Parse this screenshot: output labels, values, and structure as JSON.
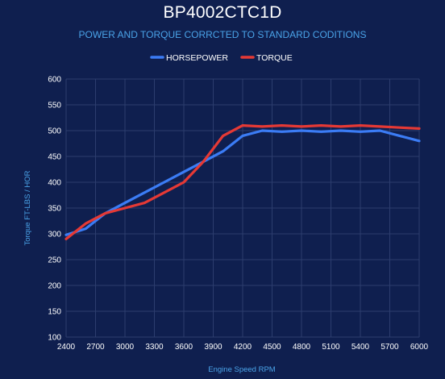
{
  "chart_data": {
    "type": "line",
    "title": "BP4002CTC1D",
    "subtitle": "POWER AND TORQUE CORRCTED TO STANDARD CODITIONS",
    "xlabel": "Engine Speed RPM",
    "ylabel": "Torque FT-LBS / HOR",
    "xlim": [
      2400,
      6000
    ],
    "ylim": [
      100,
      600
    ],
    "x_ticks": [
      2400,
      2700,
      3000,
      3300,
      3600,
      3900,
      4200,
      4500,
      4800,
      5100,
      5400,
      5700,
      6000
    ],
    "y_ticks": [
      100,
      150,
      200,
      250,
      300,
      350,
      400,
      450,
      500,
      550,
      600
    ],
    "grid": true,
    "legend_position": "top-center",
    "series": [
      {
        "name": "HORSEPOWER",
        "color": "#3b7cf5",
        "x": [
          2400,
          2600,
          2800,
          3000,
          3200,
          3400,
          3600,
          3800,
          4000,
          4200,
          4400,
          4600,
          4800,
          5000,
          5200,
          5400,
          5600,
          5800,
          6000
        ],
        "values": [
          298,
          310,
          340,
          360,
          380,
          400,
          420,
          440,
          460,
          490,
          500,
          498,
          500,
          498,
          500,
          498,
          500,
          490,
          480
        ]
      },
      {
        "name": "TORQUE",
        "color": "#e53935",
        "x": [
          2400,
          2600,
          2800,
          3000,
          3200,
          3400,
          3600,
          3800,
          4000,
          4200,
          4400,
          4600,
          4800,
          5000,
          5200,
          5400,
          5600,
          5800,
          6000
        ],
        "values": [
          290,
          320,
          340,
          350,
          360,
          380,
          400,
          440,
          490,
          510,
          508,
          510,
          508,
          510,
          508,
          510,
          508,
          506,
          504
        ]
      }
    ]
  }
}
